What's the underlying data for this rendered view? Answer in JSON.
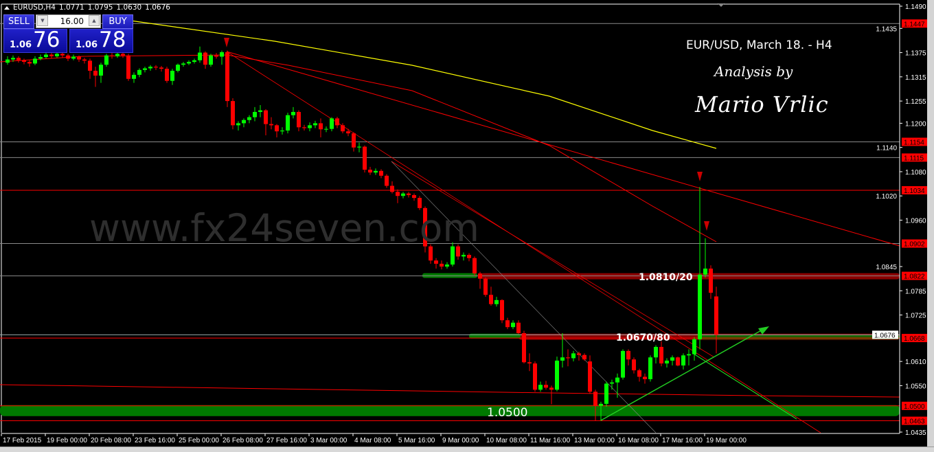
{
  "header": {
    "symbol": "EURUSD,H4",
    "open": "1.0771",
    "high": "1.0795",
    "low": "1.0630",
    "close": "1.0676"
  },
  "trade_panel": {
    "sell_label": "SELL",
    "buy_label": "BUY",
    "lot": "16.00",
    "sell_small": "1.06",
    "sell_large": "76",
    "buy_small": "1.06",
    "buy_large": "78",
    "sell_color": "#1a1ab8"
  },
  "annotations": {
    "title": "EUR/USD, March 18. - H4",
    "analysis_by": "Analysis by",
    "author": "Mario Vrlic",
    "watermark": "www.fx24seven.com",
    "level_1": "1.0810/20",
    "level_2": "1.0670/80",
    "level_3": "1.0500"
  },
  "chart_data": {
    "type": "candlestick",
    "symbol": "EURUSD",
    "timeframe": "H4",
    "ylim": [
      1.0435,
      1.149
    ],
    "y_ticks": [
      "1.1490",
      "1.1435",
      "1.1375",
      "1.1315",
      "1.1255",
      "1.1200",
      "1.1140",
      "1.1080",
      "1.1020",
      "1.0960",
      "1.0845",
      "1.0785",
      "1.0725",
      "1.0610",
      "1.0550",
      "1.0435"
    ],
    "x_ticks": [
      "17 Feb 2015",
      "19 Feb 00:00",
      "20 Feb 08:00",
      "23 Feb 16:00",
      "25 Feb 00:00",
      "26 Feb 08:00",
      "27 Feb 16:00",
      "3 Mar 00:00",
      "4 Mar 08:00",
      "5 Mar 16:00",
      "9 Mar 00:00",
      "10 Mar 08:00",
      "11 Mar 16:00",
      "13 Mar 00:00",
      "16 Mar 08:00",
      "17 Mar 16:00",
      "19 Mar 00:00"
    ],
    "price_levels": [
      {
        "value": "1.1447",
        "color": "#ff0000"
      },
      {
        "value": "1.1154",
        "color": "#ff0000"
      },
      {
        "value": "1.1115",
        "color": "#ff0000"
      },
      {
        "value": "1.1034",
        "color": "#ff0000"
      },
      {
        "value": "1.0902",
        "color": "#ff0000"
      },
      {
        "value": "1.0822",
        "color": "#ff0000"
      },
      {
        "value": "1.0668",
        "color": "#ff0000"
      },
      {
        "value": "1.0500",
        "color": "#ff0000"
      },
      {
        "value": "1.0463",
        "color": "#ff0000"
      }
    ],
    "bid_label": "1.0676",
    "colors": {
      "bull": "#00ff00",
      "bear": "#ff0000",
      "ma_slow": "#ffff00",
      "ma": "#ff0000",
      "support_band": "#007a00",
      "resistance_band": "#8b0000"
    },
    "candles": [
      [
        1.135,
        1.1366,
        1.1345,
        1.1358
      ],
      [
        1.1358,
        1.1368,
        1.1352,
        1.1362
      ],
      [
        1.1362,
        1.1366,
        1.135,
        1.1356
      ],
      [
        1.1356,
        1.136,
        1.1346,
        1.1352
      ],
      [
        1.1352,
        1.1356,
        1.134,
        1.1348
      ],
      [
        1.1348,
        1.1366,
        1.1344,
        1.136
      ],
      [
        1.136,
        1.137,
        1.1356,
        1.1364
      ],
      [
        1.1364,
        1.1376,
        1.136,
        1.137
      ],
      [
        1.137,
        1.1374,
        1.136,
        1.1366
      ],
      [
        1.1366,
        1.1378,
        1.1362,
        1.1372
      ],
      [
        1.1372,
        1.1376,
        1.1362,
        1.1368
      ],
      [
        1.1368,
        1.1372,
        1.1354,
        1.136
      ],
      [
        1.136,
        1.137,
        1.1356,
        1.1365
      ],
      [
        1.1365,
        1.1368,
        1.1352,
        1.1358
      ],
      [
        1.1358,
        1.1362,
        1.1348,
        1.1355
      ],
      [
        1.1355,
        1.136,
        1.131,
        1.133
      ],
      [
        1.133,
        1.134,
        1.129,
        1.1318
      ],
      [
        1.1318,
        1.135,
        1.13,
        1.1345
      ],
      [
        1.1345,
        1.1372,
        1.134,
        1.1368
      ],
      [
        1.1368,
        1.1374,
        1.136,
        1.1366
      ],
      [
        1.1366,
        1.1378,
        1.1362,
        1.1372
      ],
      [
        1.1372,
        1.1376,
        1.1362,
        1.1368
      ],
      [
        1.1368,
        1.1372,
        1.1305,
        1.131
      ],
      [
        1.131,
        1.1326,
        1.13,
        1.132
      ],
      [
        1.132,
        1.1336,
        1.1314,
        1.1332
      ],
      [
        1.1332,
        1.134,
        1.1326,
        1.1336
      ],
      [
        1.1336,
        1.1344,
        1.133,
        1.134
      ],
      [
        1.134,
        1.1344,
        1.1332,
        1.1338
      ],
      [
        1.1338,
        1.1342,
        1.1328,
        1.1335
      ],
      [
        1.1335,
        1.134,
        1.13,
        1.1305
      ],
      [
        1.1305,
        1.1335,
        1.1295,
        1.133
      ],
      [
        1.133,
        1.1348,
        1.1326,
        1.1345
      ],
      [
        1.1345,
        1.1352,
        1.134,
        1.1348
      ],
      [
        1.1348,
        1.1356,
        1.1344,
        1.1352
      ],
      [
        1.1352,
        1.136,
        1.1348,
        1.1356
      ],
      [
        1.1356,
        1.139,
        1.135,
        1.1375
      ],
      [
        1.1375,
        1.1378,
        1.1335,
        1.1345
      ],
      [
        1.1345,
        1.1372,
        1.134,
        1.1368
      ],
      [
        1.1368,
        1.1374,
        1.136,
        1.1365
      ],
      [
        1.1365,
        1.138,
        1.1345,
        1.1376
      ],
      [
        1.1376,
        1.138,
        1.124,
        1.1255
      ],
      [
        1.1255,
        1.1262,
        1.1185,
        1.1195
      ],
      [
        1.1195,
        1.1205,
        1.1182,
        1.12
      ],
      [
        1.12,
        1.1212,
        1.119,
        1.1208
      ],
      [
        1.1208,
        1.122,
        1.12,
        1.1215
      ],
      [
        1.1215,
        1.124,
        1.1205,
        1.1228
      ],
      [
        1.1228,
        1.1245,
        1.1215,
        1.1232
      ],
      [
        1.1232,
        1.1235,
        1.117,
        1.1198
      ],
      [
        1.1198,
        1.1215,
        1.1185,
        1.1195
      ],
      [
        1.1195,
        1.1198,
        1.1165,
        1.118
      ],
      [
        1.118,
        1.119,
        1.1172,
        1.1182
      ],
      [
        1.1182,
        1.1226,
        1.1175,
        1.122
      ],
      [
        1.122,
        1.124,
        1.1212,
        1.1228
      ],
      [
        1.1228,
        1.1232,
        1.118,
        1.119
      ],
      [
        1.119,
        1.1196,
        1.1182,
        1.1188
      ],
      [
        1.1188,
        1.1202,
        1.118,
        1.1195
      ],
      [
        1.1195,
        1.1206,
        1.1188,
        1.12
      ],
      [
        1.12,
        1.1212,
        1.1165,
        1.1185
      ],
      [
        1.1185,
        1.1192,
        1.1178,
        1.1186
      ],
      [
        1.1186,
        1.1215,
        1.118,
        1.1212
      ],
      [
        1.1212,
        1.1216,
        1.1188,
        1.1195
      ],
      [
        1.1195,
        1.12,
        1.1175,
        1.118
      ],
      [
        1.118,
        1.1186,
        1.1168,
        1.1175
      ],
      [
        1.1175,
        1.1178,
        1.113,
        1.114
      ],
      [
        1.114,
        1.1152,
        1.1128,
        1.1142
      ],
      [
        1.1142,
        1.1145,
        1.1078,
        1.1085
      ],
      [
        1.1085,
        1.1092,
        1.1072,
        1.1078
      ],
      [
        1.1078,
        1.1088,
        1.1072,
        1.1082
      ],
      [
        1.1082,
        1.1086,
        1.1064,
        1.107
      ],
      [
        1.107,
        1.1074,
        1.104,
        1.1045
      ],
      [
        1.1045,
        1.1056,
        1.1026,
        1.103
      ],
      [
        1.103,
        1.1036,
        1.1002,
        1.102
      ],
      [
        1.102,
        1.103,
        1.1014,
        1.1026
      ],
      [
        1.1026,
        1.103,
        1.1016,
        1.1022
      ],
      [
        1.1022,
        1.1026,
        1.1008,
        1.1015
      ],
      [
        1.1015,
        1.102,
        1.0985,
        1.099
      ],
      [
        1.099,
        1.0994,
        1.088,
        1.0895
      ],
      [
        1.0895,
        1.09,
        1.0852,
        1.086
      ],
      [
        1.086,
        1.0866,
        1.084,
        1.0852
      ],
      [
        1.0852,
        1.086,
        1.0838,
        1.0845
      ],
      [
        1.0845,
        1.0856,
        1.084,
        1.085
      ],
      [
        1.085,
        1.0905,
        1.0845,
        1.0895
      ],
      [
        1.0895,
        1.09,
        1.0862,
        1.087
      ],
      [
        1.087,
        1.088,
        1.086,
        1.0874
      ],
      [
        1.0874,
        1.0878,
        1.0858,
        1.0866
      ],
      [
        1.0866,
        1.087,
        1.0822,
        1.0828
      ],
      [
        1.0828,
        1.0832,
        1.079,
        1.0815
      ],
      [
        1.0815,
        1.0818,
        1.077,
        1.0775
      ],
      [
        1.0775,
        1.0795,
        1.0748,
        1.0752
      ],
      [
        1.0752,
        1.077,
        1.0746,
        1.0762
      ],
      [
        1.0762,
        1.0764,
        1.0705,
        1.0712
      ],
      [
        1.0712,
        1.0718,
        1.069,
        1.0695
      ],
      [
        1.0695,
        1.0712,
        1.069,
        1.0706
      ],
      [
        1.0706,
        1.0712,
        1.0678,
        1.068
      ],
      [
        1.068,
        1.0686,
        1.0605,
        1.0608
      ],
      [
        1.0608,
        1.063,
        1.0586,
        1.0605
      ],
      [
        1.0605,
        1.061,
        1.0535,
        1.054
      ],
      [
        1.054,
        1.056,
        1.0535,
        1.0552
      ],
      [
        1.0552,
        1.0562,
        1.054,
        1.0545
      ],
      [
        1.0545,
        1.055,
        1.0504,
        1.054
      ],
      [
        1.054,
        1.0622,
        1.0536,
        1.0612
      ],
      [
        1.0612,
        1.068,
        1.0595,
        1.062
      ],
      [
        1.062,
        1.064,
        1.0598,
        1.0618
      ],
      [
        1.0618,
        1.0636,
        1.061,
        1.063
      ],
      [
        1.063,
        1.0634,
        1.0612,
        1.0626
      ],
      [
        1.0626,
        1.063,
        1.0612,
        1.0615
      ],
      [
        1.061,
        1.0625,
        1.053,
        1.0535
      ],
      [
        1.0535,
        1.054,
        1.0463,
        1.05
      ],
      [
        1.05,
        1.051,
        1.0463,
        1.0505
      ],
      [
        1.0505,
        1.056,
        1.0498,
        1.0555
      ],
      [
        1.0555,
        1.0565,
        1.054,
        1.0558
      ],
      [
        1.0558,
        1.058,
        1.052,
        1.057
      ],
      [
        1.057,
        1.064,
        1.0565,
        1.0636
      ],
      [
        1.0636,
        1.064,
        1.06,
        1.0615
      ],
      [
        1.0615,
        1.062,
        1.058,
        1.0588
      ],
      [
        1.0588,
        1.0592,
        1.056,
        1.0572
      ],
      [
        1.0572,
        1.058,
        1.0555,
        1.0566
      ],
      [
        1.0566,
        1.0625,
        1.056,
        1.062
      ],
      [
        1.062,
        1.065,
        1.0605,
        1.0646
      ],
      [
        1.0646,
        1.066,
        1.0598,
        1.0605
      ],
      [
        1.0605,
        1.0618,
        1.0595,
        1.0612
      ],
      [
        1.0612,
        1.0625,
        1.06,
        1.062
      ],
      [
        1.062,
        1.0622,
        1.0598,
        1.06
      ],
      [
        1.06,
        1.063,
        1.059,
        1.0625
      ],
      [
        1.0625,
        1.064,
        1.06,
        1.0628
      ],
      [
        1.0628,
        1.067,
        1.0612,
        1.0665
      ],
      [
        1.0665,
        1.1042,
        1.064,
        1.0825
      ],
      [
        1.0825,
        1.0915,
        1.0818,
        1.084
      ],
      [
        1.084,
        1.0848,
        1.0765,
        1.078
      ],
      [
        1.0771,
        1.0795,
        1.063,
        1.0676
      ]
    ]
  }
}
